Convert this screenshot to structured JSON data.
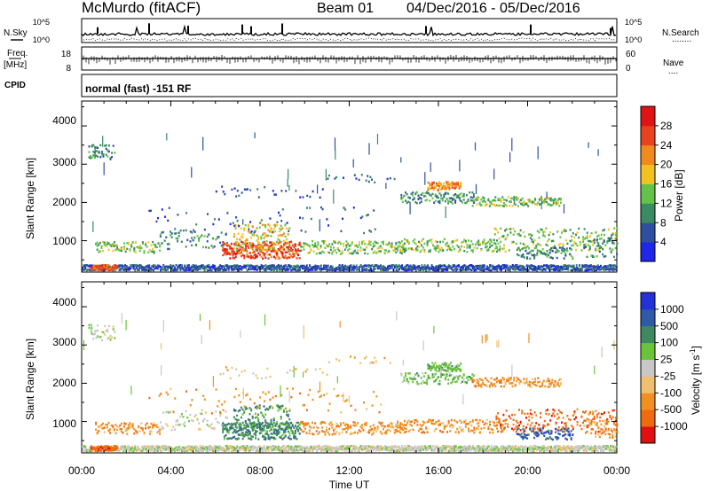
{
  "header": {
    "radar": "McMurdo (fitACF)",
    "beam": "Beam 01",
    "date_range": "04/Dec/2016 - 05/Dec/2016",
    "nsky_label": "N.Sky",
    "nsearch_label": "N.Search",
    "nsearch_dots": "........",
    "noise_ticks": [
      "10^5",
      "10^0"
    ],
    "freq_label": "Freq.",
    "freq_unit": "[MHz]",
    "freq_ticks": [
      "18",
      "8"
    ],
    "nave_label": "Nave",
    "nave_dots": "....",
    "nave_ticks": [
      "60",
      "0"
    ],
    "cpid_label": "CPID",
    "cpid_value": "normal (fast) -151 RF"
  },
  "axes": {
    "ylabel": "Slant Range [km]",
    "yticks": [
      "1000",
      "2000",
      "3000",
      "4000"
    ],
    "xticks": [
      "00:00",
      "04:00",
      "08:00",
      "12:00",
      "16:00",
      "20:00",
      "00:00"
    ],
    "xlabel": "Time UT"
  },
  "power_scale": {
    "label": "Power [dB]",
    "ticks": [
      "4",
      "8",
      "12",
      "16",
      "20",
      "24",
      "28"
    ],
    "colors": [
      "#1f26e8",
      "#2e4fa0",
      "#3a8a62",
      "#63c24a",
      "#f2c21f",
      "#f08a1e",
      "#e8421f",
      "#e01414"
    ]
  },
  "velocity_scale": {
    "label": "Velocity [m s",
    "label_sup": "-1",
    "label_end": "]",
    "ticks": [
      "1000",
      "500",
      "100",
      "25",
      "-25",
      "-100",
      "-500",
      "-1000"
    ],
    "colors": [
      "#2430d8",
      "#2e5aa8",
      "#3e8a5e",
      "#6ac43a",
      "#c8c8c8",
      "#f0c070",
      "#f09020",
      "#f06a10",
      "#e01010"
    ]
  },
  "chart_data": [
    {
      "type": "heatmap",
      "title": "Power [dB]",
      "x_label": "Time UT",
      "y_label": "Slant Range [km]",
      "x_range": [
        "04/Dec/2016 00:00",
        "05/Dec/2016 00:00"
      ],
      "y_range_km": [
        180,
        4650
      ],
      "colorbar_range_dB": [
        0,
        32
      ],
      "features": [
        {
          "time": "00:30-01:30",
          "range_km": 300,
          "power_dB": 26
        },
        {
          "time": "00:40-01:20",
          "range_km": 3300,
          "power_dB": 8
        },
        {
          "time": "06:30-09:30",
          "range_km": 800,
          "power_dB": 28
        },
        {
          "time": "16:00-17:00",
          "range_km": 2400,
          "power_dB": 22
        },
        {
          "time": "15:00-17:30",
          "range_km": 2150,
          "power_dB": 14
        }
      ]
    },
    {
      "type": "heatmap",
      "title": "Velocity [m s-1]",
      "x_label": "Time UT",
      "y_label": "Slant Range [km]",
      "x_range": [
        "04/Dec/2016 00:00",
        "05/Dec/2016 00:00"
      ],
      "y_range_km": [
        180,
        4650
      ],
      "colorbar_range_ms": [
        -1000,
        1000
      ],
      "features": [
        {
          "time": "07:00-09:30",
          "range_km": 900,
          "velocity_ms": 150
        },
        {
          "time": "15:00-17:30",
          "range_km": 2200,
          "velocity_ms": 80
        },
        {
          "time": "17:00-20:30",
          "range_km": 2000,
          "velocity_ms": -300
        },
        {
          "time": "20:00-24:00",
          "range_km": 1000,
          "velocity_ms": -400
        }
      ]
    }
  ]
}
